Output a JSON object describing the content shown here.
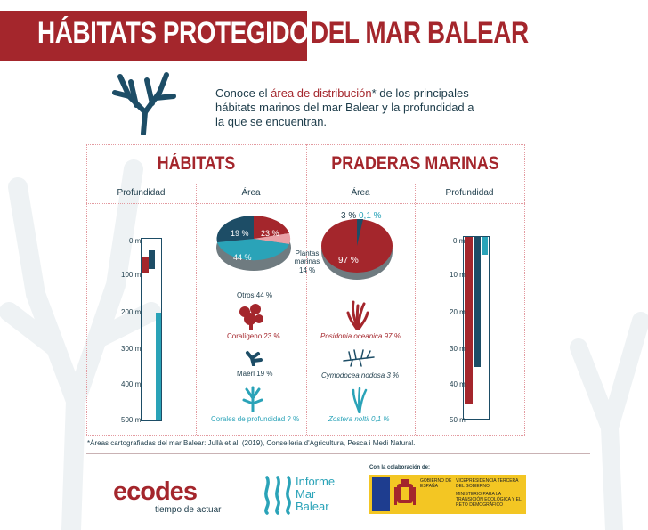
{
  "title": {
    "part1": "HÁBITATS PROTEGIDOS",
    "part2": "DEL MAR BALEAR"
  },
  "intro": {
    "before": "Conoce el ",
    "highlight": "área de distribución",
    "after": "* de los principales hábitats marinos del mar Balear y la profundidad a la que se encuentran."
  },
  "sections": {
    "habitats": "HÁBITATS",
    "praderas": "PRADERAS MARINAS"
  },
  "columns": {
    "profundidad": "Profundidad",
    "area": "Área"
  },
  "habitats": {
    "depth_ticks": [
      "0 m",
      "100 m",
      "200 m",
      "300 m",
      "400 m",
      "500 m"
    ],
    "pie_labels": {
      "maerl": "19 %",
      "coral": "23 %",
      "otros": "44 %",
      "plantas_label": "Plantas marinas",
      "plantas_value": "14 %"
    },
    "items": {
      "otros": "Otros 44 %",
      "coraligeno": "Coralígeno 23 %",
      "maerl": "Maërl 19 %",
      "corales": "Corales de profundidad ? %"
    }
  },
  "praderas": {
    "pie_labels": {
      "top": "3 %",
      "top2": "0,1 %",
      "main": "97 %"
    },
    "depth_ticks": [
      "0 m",
      "10 m",
      "20 m",
      "30 m",
      "40 m",
      "50 m"
    ],
    "items": {
      "posidonia": "Posidonia oceanica 97 %",
      "cymodocea": "Cymodocea nodosa 3 %",
      "zostera": "Zostera noltii 0,1 %"
    }
  },
  "footnote": "*Áreas cartografiadas del mar Balear: Jullà et al. (2019), Conselleria d'Agricultura, Pesca i Medi Natural.",
  "logos": {
    "ecodes": "ecodes",
    "ecodes_tag": "tiempo de actuar",
    "imb_1": "Informe",
    "imb_2": "Mar",
    "imb_3": "Balear",
    "colab": "Con la colaboración de:",
    "gob_1": "GOBIERNO DE ESPAÑA",
    "gob_2": "VICEPRESIDENCIA TERCERA DEL GOBIERNO",
    "gob_3": "MINISTERIO PARA LA TRANSICIÓN ECOLÓGICA Y EL RETO DEMOGRÁFICO"
  },
  "colors": {
    "red": "#a4262c",
    "navy": "#1d4d66",
    "teal": "#2aa3b8",
    "grey": "#6f7b80"
  }
}
